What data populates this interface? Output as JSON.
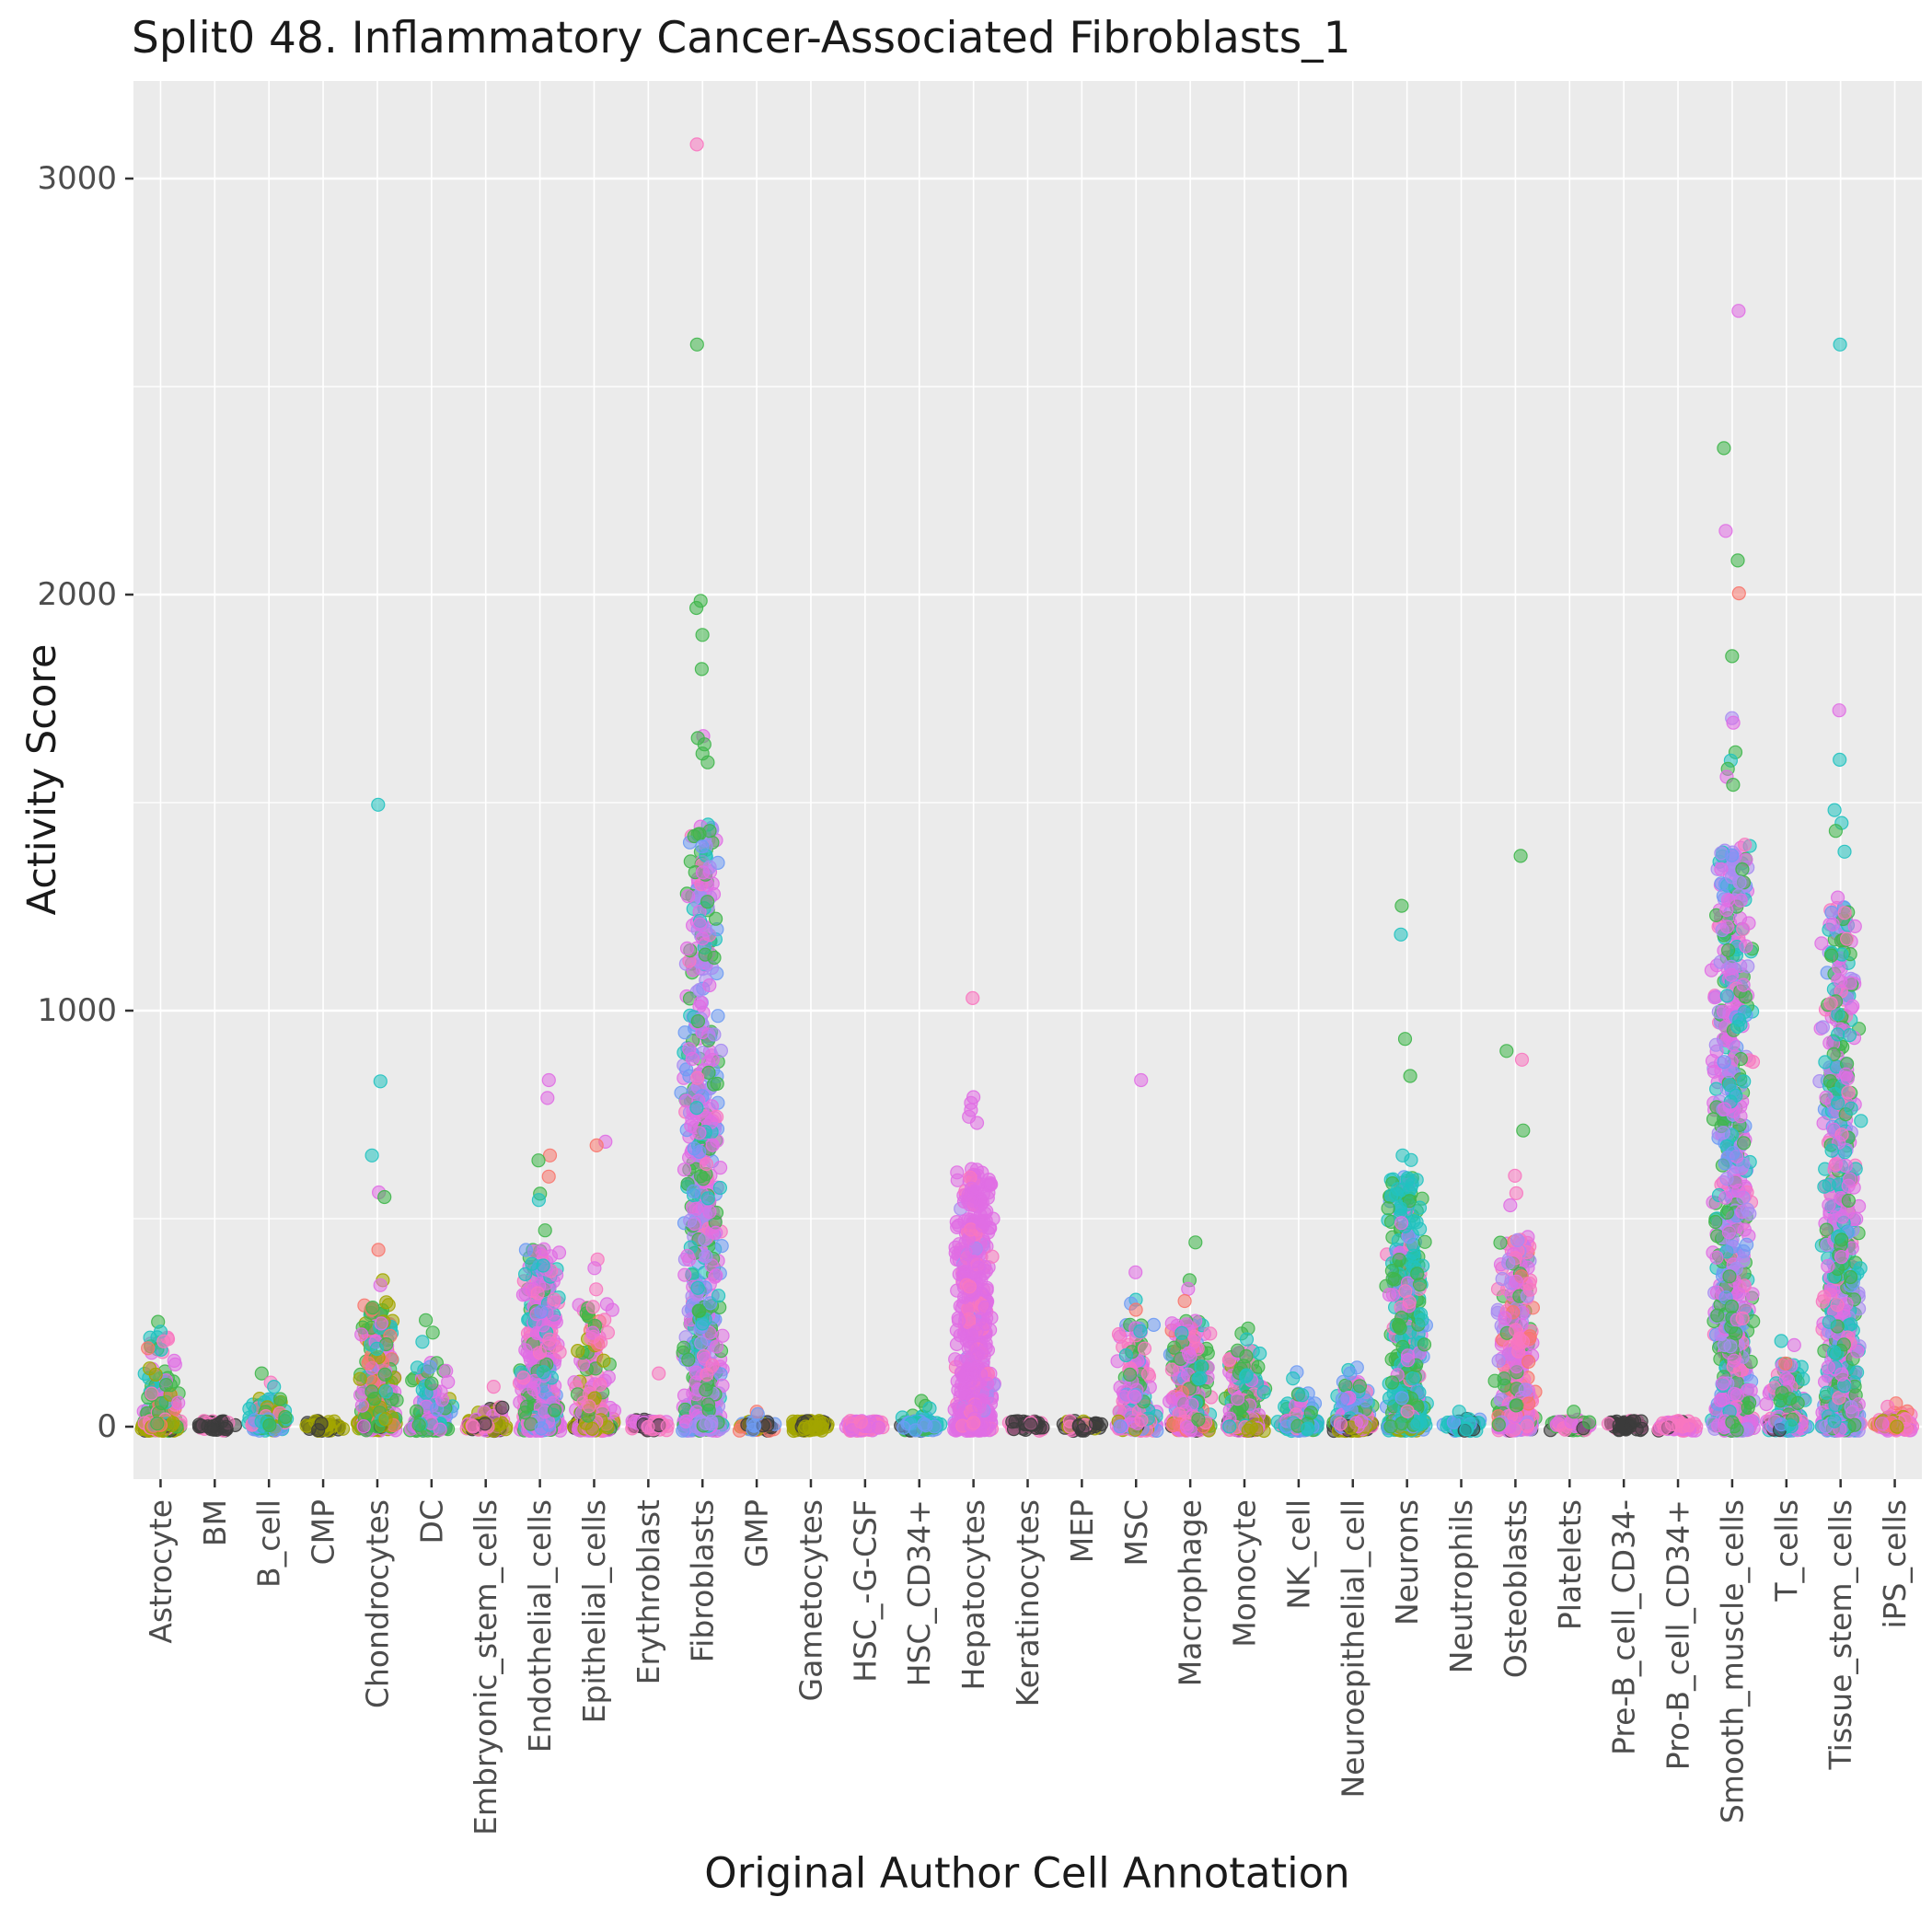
{
  "chart_data": {
    "type": "scatter",
    "variant": "jitter-strip",
    "title": "Split0 48. Inflammatory Cancer-Associated Fibroblasts_1",
    "xlabel": "Original Author Cell Annotation",
    "ylabel": "Activity Score",
    "panel_color": "#ebebeb",
    "grid_color": "#ffffff",
    "tick_label_color": "#4d4d4d",
    "y_ticks": [
      0,
      1000,
      2000,
      3000
    ],
    "y_minor": [
      500,
      1500,
      2500
    ],
    "ylim": [
      -126,
      3235
    ],
    "legend": "none",
    "palette": {
      "salmon": "#f8766d",
      "olive": "#a3a500",
      "green": "#3fb64b",
      "teal": "#21c2c0",
      "blue": "#6e9bf4",
      "purple": "#a78cf2",
      "magenta": "#e06ee4",
      "pink": "#f877c0",
      "dark": "#3c3c3c"
    },
    "categories": [
      {
        "label": "Astrocyte",
        "n": 260,
        "max": 215,
        "k": 2.2,
        "zf": 0.5,
        "zc": {
          "olive": 6,
          "dark": 1,
          "salmon": 1,
          "pink": 1,
          "green": 1
        },
        "colors": {
          "green": 3,
          "pink": 2,
          "magenta": 1.5,
          "teal": 1.5,
          "salmon": 1,
          "olive": 1
        },
        "out": [
          [
            252,
            "green"
          ],
          [
            228,
            "teal"
          ],
          [
            205,
            "pink"
          ]
        ]
      },
      {
        "label": "BM",
        "n": 45,
        "max": 14,
        "k": 3,
        "zf": 0.8,
        "colors": {
          "dark": 4,
          "pink": 1
        },
        "out": []
      },
      {
        "label": "B_cell",
        "n": 150,
        "max": 68,
        "k": 2.4,
        "zf": 0.45,
        "colors": {
          "teal": 3,
          "green": 2.5,
          "blue": 1.5,
          "pink": 1.5,
          "olive": 1.5
        },
        "out": [
          [
            128,
            "green"
          ],
          [
            106,
            "pink"
          ],
          [
            96,
            "teal"
          ]
        ]
      },
      {
        "label": "CMP",
        "n": 60,
        "max": 16,
        "k": 3,
        "zf": 0.8,
        "colors": {
          "olive": 7,
          "dark": 3
        },
        "out": []
      },
      {
        "label": "Chondrocytes",
        "n": 320,
        "max": 300,
        "k": 2.0,
        "zf": 0.35,
        "zc": {
          "olive": 4,
          "magenta": 3,
          "green": 2,
          "dark": 1
        },
        "colors": {
          "magenta": 3,
          "green": 2.5,
          "olive": 2,
          "teal": 1.5,
          "salmon": 1
        },
        "out": [
          [
            1495,
            "teal"
          ],
          [
            830,
            "teal"
          ],
          [
            652,
            "teal"
          ],
          [
            563,
            "magenta"
          ],
          [
            552,
            "green"
          ],
          [
            425,
            "salmon"
          ],
          [
            352,
            "olive"
          ],
          [
            340,
            "magenta"
          ]
        ]
      },
      {
        "label": "DC",
        "n": 180,
        "max": 155,
        "k": 2.3,
        "zf": 0.4,
        "colors": {
          "magenta": 3,
          "green": 2.5,
          "teal": 2,
          "blue": 1.5,
          "olive": 1
        },
        "out": [
          [
            256,
            "green"
          ],
          [
            226,
            "green"
          ],
          [
            204,
            "teal"
          ]
        ]
      },
      {
        "label": "Embryonic_stem_cells",
        "n": 130,
        "max": 52,
        "k": 2.5,
        "zf": 0.6,
        "zc": {
          "olive": 4,
          "dark": 2,
          "pink": 2,
          "magenta": 2
        },
        "colors": {
          "pink": 3,
          "magenta": 3,
          "olive": 2,
          "dark": 1
        },
        "out": [
          [
            96,
            "pink"
          ]
        ]
      },
      {
        "label": "Endothelial_cells",
        "n": 560,
        "max": 430,
        "k": 1.9,
        "zf": 0.25,
        "zc": {
          "magenta": 6,
          "pink": 2,
          "blue": 1,
          "green": 1
        },
        "colors": {
          "magenta": 4.5,
          "pink": 1.5,
          "green": 1.5,
          "teal": 1.5,
          "blue": 1
        },
        "out": [
          [
            833,
            "magenta"
          ],
          [
            790,
            "magenta"
          ],
          [
            652,
            "salmon"
          ],
          [
            640,
            "green"
          ],
          [
            601,
            "salmon"
          ],
          [
            560,
            "green"
          ],
          [
            545,
            "teal"
          ],
          [
            472,
            "green"
          ]
        ]
      },
      {
        "label": "Epithelial_cells",
        "n": 260,
        "max": 295,
        "k": 2.4,
        "zf": 0.4,
        "zc": {
          "magenta": 4,
          "olive": 3,
          "pink": 2,
          "dark": 1
        },
        "colors": {
          "magenta": 3.5,
          "pink": 2,
          "green": 2,
          "olive": 1.5,
          "salmon": 1
        },
        "out": [
          [
            685,
            "magenta"
          ],
          [
            676,
            "salmon"
          ],
          [
            402,
            "pink"
          ],
          [
            381,
            "magenta"
          ],
          [
            330,
            "pink"
          ]
        ]
      },
      {
        "label": "Erythroblast",
        "n": 80,
        "max": 22,
        "k": 3,
        "zf": 0.7,
        "colors": {
          "pink": 4,
          "magenta": 3,
          "dark": 3
        },
        "out": [
          [
            128,
            "pink"
          ]
        ]
      },
      {
        "label": "Fibroblasts",
        "n": 800,
        "max": 1450,
        "k": 1.7,
        "zf": 0.18,
        "zc": {
          "purple": 4,
          "magenta": 3,
          "blue": 2,
          "green": 1
        },
        "colors": {
          "magenta": 3,
          "green": 2.8,
          "purple": 1.8,
          "blue": 1.2,
          "teal": 0.7,
          "pink": 0.5
        },
        "out": [
          [
            3082,
            "pink"
          ],
          [
            2601,
            "green"
          ],
          [
            1985,
            "green"
          ],
          [
            1968,
            "green"
          ],
          [
            1903,
            "green"
          ],
          [
            1821,
            "green"
          ],
          [
            1660,
            "magenta"
          ],
          [
            1655,
            "green"
          ],
          [
            1640,
            "green"
          ],
          [
            1618,
            "green"
          ],
          [
            1597,
            "green"
          ]
        ]
      },
      {
        "label": "GMP",
        "n": 60,
        "max": 18,
        "k": 3,
        "zf": 0.75,
        "colors": {
          "olive": 4,
          "blue": 2,
          "salmon": 1.5,
          "dark": 2
        },
        "out": [
          [
            36,
            "salmon"
          ],
          [
            30,
            "blue"
          ]
        ]
      },
      {
        "label": "Gametocytes",
        "n": 90,
        "max": 20,
        "k": 3,
        "zf": 0.8,
        "colors": {
          "olive": 8,
          "dark": 2
        },
        "out": []
      },
      {
        "label": "HSC_-G-CSF",
        "n": 70,
        "max": 16,
        "k": 3,
        "zf": 0.8,
        "colors": {
          "pink": 6,
          "magenta": 4
        },
        "out": []
      },
      {
        "label": "HSC_CD34+",
        "n": 110,
        "max": 28,
        "k": 3,
        "zf": 0.7,
        "colors": {
          "teal": 3.5,
          "blue": 3,
          "green": 2,
          "dark": 1.5
        },
        "out": [
          [
            62,
            "green"
          ],
          [
            50,
            "green"
          ],
          [
            44,
            "teal"
          ]
        ]
      },
      {
        "label": "Hepatocytes",
        "n": 650,
        "max": 620,
        "k": 1.6,
        "zf": 0.2,
        "zc": {
          "magenta": 8,
          "pink": 2
        },
        "colors": {
          "magenta": 8,
          "pink": 1.5,
          "purple": 0.5
        },
        "out": [
          [
            1030,
            "pink"
          ],
          [
            792,
            "magenta"
          ],
          [
            778,
            "magenta"
          ],
          [
            761,
            "magenta"
          ],
          [
            745,
            "magenta"
          ],
          [
            730,
            "magenta"
          ]
        ]
      },
      {
        "label": "Keratinocytes",
        "n": 50,
        "max": 12,
        "k": 3,
        "zf": 0.85,
        "colors": {
          "dark": 7,
          "pink": 3
        },
        "out": []
      },
      {
        "label": "MEP",
        "n": 50,
        "max": 13,
        "k": 3,
        "zf": 0.85,
        "colors": {
          "dark": 6,
          "pink": 2,
          "olive": 2
        },
        "out": []
      },
      {
        "label": "MSC",
        "n": 260,
        "max": 245,
        "k": 2.1,
        "zf": 0.35,
        "zc": {
          "magenta": 4,
          "olive": 2,
          "pink": 2,
          "blue": 1,
          "dark": 1
        },
        "colors": {
          "magenta": 3,
          "pink": 2,
          "green": 2,
          "teal": 1.5,
          "blue": 1.5
        },
        "out": [
          [
            833,
            "magenta"
          ],
          [
            371,
            "magenta"
          ],
          [
            305,
            "teal"
          ],
          [
            296,
            "blue"
          ],
          [
            281,
            "salmon"
          ]
        ]
      },
      {
        "label": "Macrophage",
        "n": 400,
        "max": 260,
        "k": 2.0,
        "zf": 0.3,
        "zc": {
          "magenta": 4,
          "pink": 2,
          "olive": 2,
          "salmon": 1,
          "dark": 1
        },
        "colors": {
          "magenta": 3.5,
          "green": 2.5,
          "pink": 1.5,
          "salmon": 1,
          "teal": 1,
          "blue": 0.5
        },
        "out": [
          [
            443,
            "green"
          ],
          [
            352,
            "green"
          ],
          [
            331,
            "magenta"
          ],
          [
            302,
            "salmon"
          ]
        ]
      },
      {
        "label": "Monocyte",
        "n": 300,
        "max": 190,
        "k": 2.2,
        "zf": 0.35,
        "zc": {
          "magenta": 3,
          "olive": 3,
          "pink": 2,
          "dark": 2
        },
        "colors": {
          "magenta": 3,
          "green": 3,
          "pink": 1.5,
          "teal": 1.5,
          "olive": 1
        },
        "out": [
          [
            236,
            "green"
          ],
          [
            224,
            "green"
          ],
          [
            210,
            "teal"
          ]
        ]
      },
      {
        "label": "NK_cell",
        "n": 150,
        "max": 88,
        "k": 2.4,
        "zf": 0.45,
        "colors": {
          "teal": 3,
          "blue": 2.5,
          "green": 2,
          "magenta": 1.5,
          "pink": 1
        },
        "out": [
          [
            131,
            "blue"
          ],
          [
            116,
            "teal"
          ]
        ]
      },
      {
        "label": "Neuroepithelial_cell",
        "n": 260,
        "max": 108,
        "k": 2.6,
        "zf": 0.55,
        "zc": {
          "olive": 6,
          "dark": 2,
          "magenta": 2
        },
        "colors": {
          "magenta": 3,
          "blue": 2.5,
          "teal": 2,
          "green": 1.5,
          "pink": 1
        },
        "out": [
          [
            142,
            "blue"
          ],
          [
            136,
            "teal"
          ],
          [
            128,
            "blue"
          ]
        ]
      },
      {
        "label": "Neurons",
        "n": 500,
        "max": 600,
        "k": 1.8,
        "zf": 0.22,
        "zc": {
          "teal": 4,
          "olive": 2,
          "green": 2,
          "blue": 2
        },
        "colors": {
          "teal": 4.5,
          "green": 3,
          "magenta": 1,
          "blue": 1,
          "pink": 0.5
        },
        "out": [
          [
            1252,
            "green"
          ],
          [
            1183,
            "teal"
          ],
          [
            932,
            "green"
          ],
          [
            843,
            "green"
          ],
          [
            652,
            "teal"
          ],
          [
            641,
            "teal"
          ]
        ]
      },
      {
        "label": "Neutrophils",
        "n": 70,
        "max": 20,
        "k": 3,
        "zf": 0.75,
        "colors": {
          "teal": 4,
          "blue": 3,
          "dark": 3
        },
        "out": [
          [
            36,
            "teal"
          ]
        ]
      },
      {
        "label": "Osteoblasts",
        "n": 400,
        "max": 470,
        "k": 1.9,
        "zf": 0.25,
        "zc": {
          "magenta": 3,
          "pink": 3,
          "purple": 2,
          "dark": 1,
          "salmon": 1
        },
        "colors": {
          "pink": 3,
          "magenta": 3,
          "green": 2,
          "salmon": 1,
          "purple": 1
        },
        "out": [
          [
            1372,
            "green"
          ],
          [
            903,
            "green"
          ],
          [
            882,
            "pink"
          ],
          [
            712,
            "green"
          ],
          [
            603,
            "pink"
          ],
          [
            561,
            "pink"
          ],
          [
            532,
            "magenta"
          ]
        ]
      },
      {
        "label": "Platelets",
        "n": 60,
        "max": 22,
        "k": 3,
        "zf": 0.7,
        "colors": {
          "dark": 3,
          "green": 3,
          "pink": 2,
          "magenta": 2
        },
        "out": [
          [
            36,
            "green"
          ]
        ]
      },
      {
        "label": "Pre-B_cell_CD34-",
        "n": 50,
        "max": 11,
        "k": 3,
        "zf": 0.85,
        "colors": {
          "dark": 8,
          "pink": 2
        },
        "out": []
      },
      {
        "label": "Pro-B_cell_CD34+",
        "n": 70,
        "max": 14,
        "k": 3,
        "zf": 0.8,
        "colors": {
          "pink": 6,
          "magenta": 3,
          "dark": 1
        },
        "out": []
      },
      {
        "label": "Smooth_muscle_cells",
        "n": 850,
        "max": 1400,
        "k": 1.6,
        "zf": 0.15,
        "zc": {
          "magenta": 5,
          "purple": 2,
          "green": 2,
          "teal": 1
        },
        "colors": {
          "magenta": 3.5,
          "green": 2.2,
          "purple": 1.5,
          "teal": 1,
          "blue": 1,
          "pink": 0.8
        },
        "out": [
          [
            2682,
            "magenta"
          ],
          [
            2352,
            "green"
          ],
          [
            2153,
            "magenta"
          ],
          [
            2082,
            "green"
          ],
          [
            2003,
            "salmon"
          ],
          [
            1852,
            "green"
          ],
          [
            1703,
            "purple"
          ],
          [
            1692,
            "magenta"
          ],
          [
            1621,
            "green"
          ],
          [
            1601,
            "teal"
          ],
          [
            1581,
            "green"
          ],
          [
            1562,
            "magenta"
          ],
          [
            1543,
            "green"
          ]
        ]
      },
      {
        "label": "T_cells",
        "n": 200,
        "max": 158,
        "k": 2.3,
        "zf": 0.4,
        "zc": {
          "teal": 3,
          "magenta": 2,
          "blue": 2,
          "dark": 1,
          "olive": 1
        },
        "colors": {
          "teal": 3,
          "green": 2.5,
          "magenta": 2,
          "blue": 1.5,
          "pink": 1
        },
        "out": [
          [
            206,
            "teal"
          ],
          [
            196,
            "magenta"
          ],
          [
            152,
            "salmon"
          ]
        ]
      },
      {
        "label": "Tissue_stem_cells",
        "n": 700,
        "max": 1250,
        "k": 1.7,
        "zf": 0.18,
        "zc": {
          "magenta": 4,
          "teal": 2,
          "purple": 2,
          "green": 1,
          "blue": 1
        },
        "colors": {
          "magenta": 3.2,
          "teal": 2.2,
          "green": 2.2,
          "pink": 1,
          "purple": 1,
          "blue": 0.6
        },
        "out": [
          [
            2601,
            "teal"
          ],
          [
            1722,
            "magenta"
          ],
          [
            1603,
            "teal"
          ],
          [
            1482,
            "teal"
          ],
          [
            1451,
            "teal"
          ],
          [
            1432,
            "green"
          ],
          [
            1382,
            "teal"
          ],
          [
            1272,
            "magenta"
          ],
          [
            1235,
            "pink"
          ]
        ]
      },
      {
        "label": "iPS_cells",
        "n": 100,
        "max": 38,
        "k": 2.6,
        "zf": 0.6,
        "colors": {
          "salmon": 3,
          "pink": 3,
          "olive": 2,
          "magenta": 2
        },
        "out": [
          [
            56,
            "salmon"
          ],
          [
            48,
            "pink"
          ]
        ]
      }
    ]
  }
}
